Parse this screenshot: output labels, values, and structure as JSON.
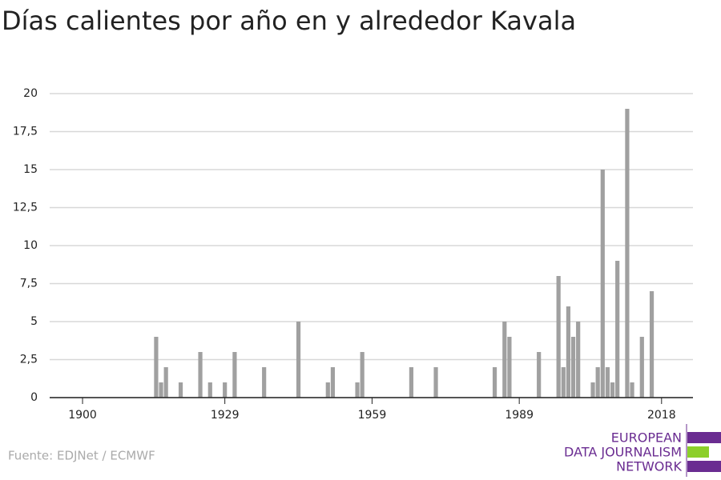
{
  "chart_data": {
    "type": "bar",
    "title": "Días calientes por año en y alrededor Kavala",
    "x": [
      1915,
      1916,
      1917,
      1920,
      1924,
      1926,
      1929,
      1931,
      1937,
      1944,
      1950,
      1951,
      1956,
      1957,
      1967,
      1972,
      1984,
      1986,
      1987,
      1993,
      1997,
      1998,
      1999,
      2000,
      2001,
      2004,
      2005,
      2006,
      2007,
      2008,
      2009,
      2011,
      2012,
      2014,
      2016
    ],
    "values": [
      4,
      1,
      2,
      1,
      3,
      1,
      1,
      3,
      2,
      5,
      1,
      2,
      1,
      3,
      2,
      2,
      2,
      5,
      4,
      3,
      8,
      2,
      6,
      4,
      5,
      1,
      2,
      15,
      2,
      1,
      9,
      19,
      1,
      4,
      7
    ],
    "color": "#a0a0a0",
    "xlim": [
      1893.3,
      2024.4
    ],
    "xticks": [
      1900,
      1929,
      1959,
      1989,
      2018
    ],
    "ylim": [
      0,
      20
    ],
    "yticks": [
      0,
      {
        "value": 2.5,
        "label": "2,5"
      },
      5,
      {
        "value": 7.5,
        "label": "7,5"
      },
      10,
      {
        "value": 12.5,
        "label": "12,5"
      },
      15,
      {
        "value": 17.5,
        "label": "17,5"
      },
      20
    ],
    "grid": true,
    "source": "Fuente: EDJNet / ECMWF",
    "logo": [
      "EUROPEAN",
      "DATA JOURNALISM",
      "NETWORK"
    ]
  }
}
